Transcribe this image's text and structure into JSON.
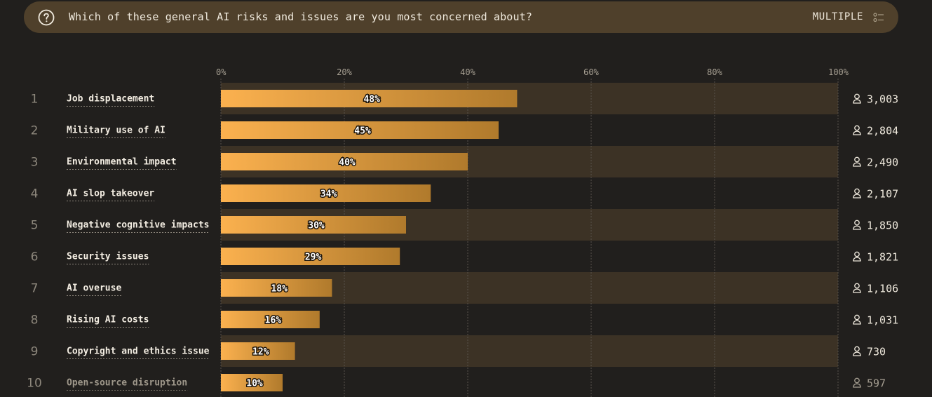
{
  "question": {
    "text": "Which of these general AI risks and issues are you most concerned about?",
    "type_label": "MULTIPLE",
    "icon": "question-circle-icon",
    "type_icon": "multiple-select-icon"
  },
  "colors": {
    "background": "#211f1d",
    "question_bar": "#4f402b",
    "row_band": "#3c3225",
    "bar_start": "#fbb14f",
    "bar_end": "#b07a2c"
  },
  "chart_data": {
    "type": "bar",
    "orientation": "horizontal",
    "x_ticks": [
      "0%",
      "20%",
      "40%",
      "60%",
      "80%",
      "100%"
    ],
    "xlim": [
      0,
      100
    ],
    "grid": true,
    "ranks": [
      "1",
      "2",
      "3",
      "4",
      "5",
      "6",
      "7",
      "8",
      "9",
      "10"
    ],
    "categories": [
      "Job displacement",
      "Military use of AI",
      "Environmental impact",
      "AI slop takeover",
      "Negative cognitive impacts",
      "Security issues",
      "AI overuse",
      "Rising AI costs",
      "Copyright and ethics issue",
      "Open-source disruption"
    ],
    "values": [
      48,
      45,
      40,
      34,
      30,
      29,
      18,
      16,
      12,
      10
    ],
    "value_labels": [
      "48%",
      "45%",
      "40%",
      "34%",
      "30%",
      "29%",
      "18%",
      "16%",
      "12%",
      "10%"
    ],
    "counts": [
      "3,003",
      "2,804",
      "2,490",
      "2,107",
      "1,850",
      "1,821",
      "1,106",
      "1,031",
      "730",
      "597"
    ],
    "count_icon": "person-icon"
  }
}
